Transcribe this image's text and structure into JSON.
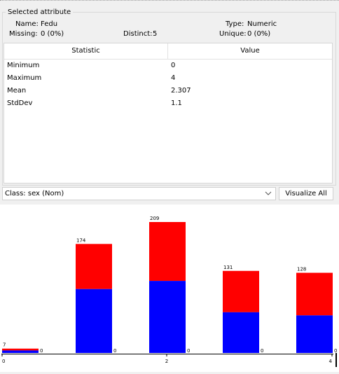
{
  "attribute": {
    "section_title": "Selected attribute",
    "name_label": "Name:",
    "name_value": "Fedu",
    "type_label": "Type:",
    "type_value": "Numeric",
    "missing_label": "Missing:",
    "missing_value": "0 (0%)",
    "distinct_label": "Distinct:",
    "distinct_value": "5",
    "unique_label": "Unique:",
    "unique_value": "0 (0%)"
  },
  "stats": {
    "headers": [
      "Statistic",
      "Value"
    ],
    "rows": [
      {
        "statistic": "Minimum",
        "value": "0"
      },
      {
        "statistic": "Maximum",
        "value": "4"
      },
      {
        "statistic": "Mean",
        "value": "2.307"
      },
      {
        "statistic": "StdDev",
        "value": "1.1"
      }
    ]
  },
  "class_selector": {
    "value": "Class: sex (Nom)"
  },
  "visualize_button": {
    "label": "Visualize All"
  },
  "colors": {
    "series_red": "#ff0000",
    "series_blue": "#0000ff"
  },
  "chart_data": {
    "type": "bar",
    "stacked": true,
    "bins": [
      {
        "total": 7,
        "blue": 4,
        "red": 3,
        "zero_label": "0"
      },
      {
        "total": 174,
        "blue": 102,
        "red": 72,
        "zero_label": "0"
      },
      {
        "total": 209,
        "blue": 115,
        "red": 94,
        "zero_label": "0"
      },
      {
        "total": 131,
        "blue": 65,
        "red": 66,
        "zero_label": "0"
      },
      {
        "total": 128,
        "blue": 60,
        "red": 68,
        "zero_label": "0"
      }
    ],
    "x_ticks": [
      "0",
      "2",
      "4"
    ],
    "ymax": 209
  }
}
